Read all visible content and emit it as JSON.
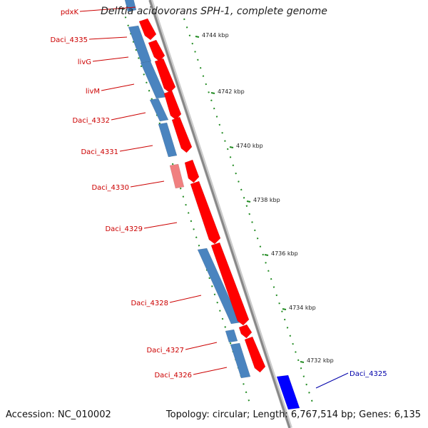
{
  "title": "Delftia acidovorans SPH-1, complete genome",
  "footer": {
    "accession": "Accession: NC_010002",
    "summary": "Topology: circular; Length: 6,767,514 bp; Genes: 6,135"
  },
  "colors": {
    "forward_cds": "#ff0000",
    "forward_pseudo": "#f08080",
    "reverse_cds": "#4a84bf",
    "highlight_cds": "#0000ff",
    "backbone": "#888888",
    "ticks": "#228b22",
    "label_red": "#cc0000",
    "label_blue": "#0000aa"
  },
  "scale": {
    "ticks": [
      {
        "label": "4744 kbp"
      },
      {
        "label": "4742 kbp"
      },
      {
        "label": "4740 kbp"
      },
      {
        "label": "4738 kbp"
      },
      {
        "label": "4736 kbp"
      },
      {
        "label": "4734 kbp"
      },
      {
        "label": "4732 kbp"
      }
    ]
  },
  "genes": [
    {
      "name": "pdxK"
    },
    {
      "name": "Daci_4335"
    },
    {
      "name": "livG"
    },
    {
      "name": "livM"
    },
    {
      "name": "Daci_4332"
    },
    {
      "name": "Daci_4331"
    },
    {
      "name": "Daci_4330"
    },
    {
      "name": "Daci_4329"
    },
    {
      "name": "Daci_4328"
    },
    {
      "name": "Daci_4327"
    },
    {
      "name": "Daci_4326"
    },
    {
      "name": "Daci_4325"
    }
  ]
}
